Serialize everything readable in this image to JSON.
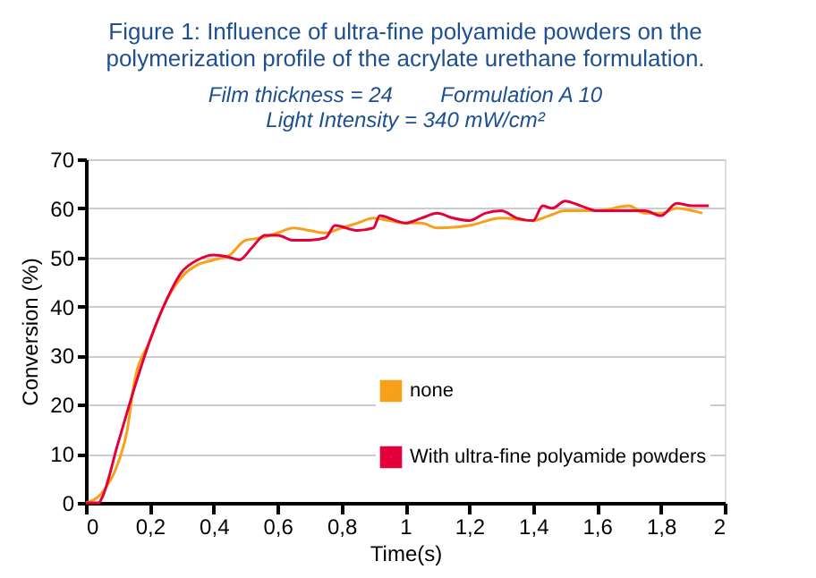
{
  "chart_data": {
    "type": "line",
    "title": "Figure 1: Influence of ultra-fine polyamide powders on the polymerization profile of the acrylate urethane formulation.",
    "subtitle": "Film thickness = 24        Formulation A 10",
    "annotations": [
      "Light Intensity = 340 mW/cm²"
    ],
    "xlabel": "Time(s)",
    "ylabel": "Conversion (%)",
    "series": [
      {
        "name": "none",
        "color": "#f7a11a",
        "x": [
          0,
          0.05,
          0.1,
          0.13,
          0.15,
          0.2,
          0.25,
          0.3,
          0.35,
          0.4,
          0.45,
          0.5,
          0.55,
          0.6,
          0.65,
          0.7,
          0.75,
          0.8,
          0.85,
          0.9,
          0.95,
          1.0,
          1.05,
          1.1,
          1.2,
          1.3,
          1.4,
          1.45,
          1.5,
          1.6,
          1.7,
          1.75,
          1.8,
          1.85,
          1.9,
          1.93
        ],
        "values": [
          0,
          2,
          8,
          15,
          24,
          33,
          41,
          46,
          48.5,
          49.5,
          50.5,
          53.5,
          54,
          55,
          56,
          55.5,
          55,
          56,
          57,
          58,
          57.5,
          57,
          57,
          56,
          56.5,
          58,
          57.5,
          58.5,
          59.5,
          59.5,
          60.5,
          59,
          59,
          60,
          59.5,
          59
        ]
      },
      {
        "name": "With ultra-fine polyamide powders",
        "color": "#e4003b",
        "x": [
          0,
          0.04,
          0.05,
          0.1,
          0.15,
          0.2,
          0.25,
          0.3,
          0.35,
          0.4,
          0.45,
          0.48,
          0.52,
          0.56,
          0.6,
          0.65,
          0.7,
          0.75,
          0.78,
          0.85,
          0.9,
          0.92,
          0.97,
          1.0,
          1.05,
          1.1,
          1.15,
          1.2,
          1.25,
          1.3,
          1.35,
          1.4,
          1.43,
          1.46,
          1.5,
          1.55,
          1.6,
          1.7,
          1.75,
          1.8,
          1.85,
          1.9,
          1.95
        ],
        "values": [
          0,
          0,
          1,
          12,
          23,
          33,
          41,
          47,
          49.5,
          50.5,
          50,
          49.5,
          52,
          54.5,
          54.5,
          53.5,
          53.5,
          54,
          56.5,
          55.5,
          56,
          58.5,
          57.5,
          57,
          58,
          59,
          58,
          57.5,
          59,
          59.5,
          58,
          57.5,
          60.5,
          60,
          61.5,
          60.5,
          59.5,
          59.5,
          59.5,
          58.5,
          61,
          60.5,
          60.5
        ]
      }
    ],
    "xlim": [
      0,
      2
    ],
    "xticks": [
      0,
      {
        "value": 0.2,
        "label": "0,2"
      },
      {
        "value": 0.4,
        "label": "0,4"
      },
      {
        "value": 0.6,
        "label": "0,6"
      },
      {
        "value": 0.8,
        "label": "0,8"
      },
      1,
      {
        "value": 1.2,
        "label": "1,2"
      },
      {
        "value": 1.4,
        "label": "1,4"
      },
      {
        "value": 1.6,
        "label": "1,6"
      },
      {
        "value": 1.8,
        "label": "1,8"
      },
      2
    ],
    "ylim": [
      0,
      70
    ],
    "yticks": [
      0,
      10,
      20,
      30,
      40,
      50,
      60,
      70
    ],
    "grid": "y",
    "legend": "bottom right",
    "marker": "none",
    "line_style": "solid"
  }
}
